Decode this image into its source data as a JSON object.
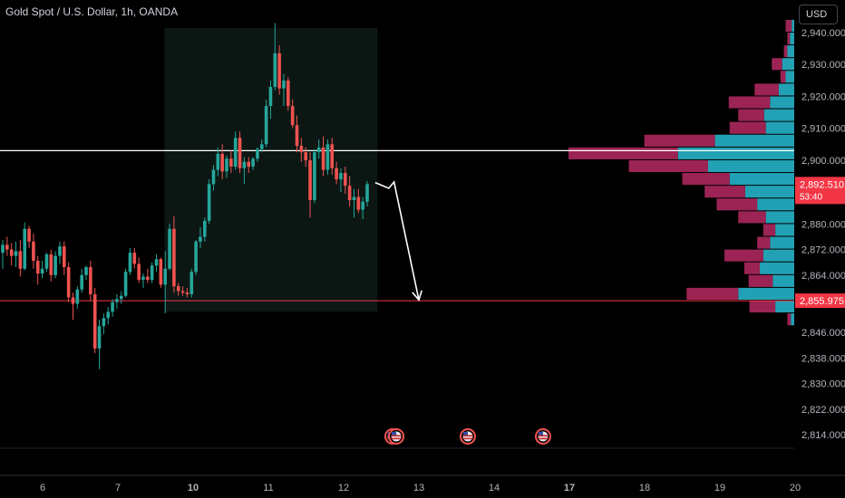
{
  "header": {
    "title": "Gold Spot / U.S. Dollar, 1h, OANDA",
    "currency_button": "USD"
  },
  "colors": {
    "up": "#26a69a",
    "down": "#ef5350",
    "vp_up": "#22a1b4",
    "vp_down": "#9c2454",
    "highlight": "#0c1714",
    "level_line": "#ffffff",
    "target_line": "#f23645",
    "price_tag": "#f23645"
  },
  "chart_data": {
    "type": "candlestick",
    "symbol": "Gold Spot / U.S. Dollar",
    "interval": "1h",
    "source": "OANDA",
    "ylim": [
      2806,
      2943
    ],
    "y_ticks": [
      2940,
      2930,
      2920,
      2910,
      2900,
      2892.51,
      2880,
      2872,
      2864,
      2855.975,
      2846,
      2838,
      2830,
      2822,
      2814
    ],
    "y_tick_labels": [
      "2,940.000",
      "2,930.000",
      "2,920.000",
      "2,910.000",
      "2,900.000",
      "2,892.510",
      "2,880.000",
      "2,872.000",
      "2,864.000",
      "2,855.975",
      "2,846.000",
      "2,838.000",
      "2,830.000",
      "2,822.000",
      "2,814.000"
    ],
    "x_range_days": [
      5.45,
      20.05
    ],
    "x_ticks": [
      {
        "label": "6",
        "day": 6
      },
      {
        "label": "7",
        "day": 7
      },
      {
        "label": "10",
        "day": 8
      },
      {
        "label": "11",
        "day": 9
      },
      {
        "label": "12",
        "day": 10
      },
      {
        "label": "13",
        "day": 11
      },
      {
        "label": "14",
        "day": 12
      },
      {
        "label": "17",
        "day": 13
      },
      {
        "label": "18",
        "day": 14
      },
      {
        "label": "19",
        "day": 15
      },
      {
        "label": "20",
        "day": 16
      }
    ],
    "current_price": {
      "value": 2892.51,
      "label": "2,892.510",
      "countdown": "53:40"
    },
    "target_price": {
      "value": 2855.975,
      "label": "2,855.975"
    },
    "resistance_level": 2903,
    "highlight_box": {
      "day_start": 7.62,
      "day_end": 10.45,
      "price_low": 2852.5,
      "price_high": 2941.5
    },
    "projection_path": [
      {
        "day": 10.42,
        "price": 2893.0
      },
      {
        "day": 10.6,
        "price": 2891.2
      },
      {
        "day": 10.67,
        "price": 2893.2
      },
      {
        "day": 11.0,
        "price": 2856.2
      }
    ],
    "event_days": [
      10.65,
      10.7,
      11.65,
      12.65
    ],
    "candles": [
      [
        2871.0,
        2875.0,
        2866.0,
        2873.5
      ],
      [
        2873.5,
        2876.0,
        2870.0,
        2872.0
      ],
      [
        2872.0,
        2874.0,
        2867.0,
        2870.0
      ],
      [
        2870.0,
        2874.5,
        2866.5,
        2871.5
      ],
      [
        2871.5,
        2875.0,
        2863.5,
        2866.0
      ],
      [
        2866.0,
        2880.5,
        2865.5,
        2878.5
      ],
      [
        2878.5,
        2879.5,
        2872.5,
        2874.5
      ],
      [
        2874.5,
        2877.0,
        2866.0,
        2868.5
      ],
      [
        2868.5,
        2870.0,
        2861.0,
        2864.5
      ],
      [
        2864.5,
        2868.5,
        2863.0,
        2866.0
      ],
      [
        2866.0,
        2871.0,
        2865.0,
        2870.5
      ],
      [
        2870.5,
        2872.0,
        2862.0,
        2864.0
      ],
      [
        2864.0,
        2871.5,
        2863.0,
        2870.0
      ],
      [
        2870.0,
        2874.5,
        2867.5,
        2873.0
      ],
      [
        2873.0,
        2874.5,
        2864.0,
        2866.5
      ],
      [
        2866.5,
        2868.0,
        2855.5,
        2857.0
      ],
      [
        2857.0,
        2858.5,
        2850.0,
        2855.0
      ],
      [
        2855.0,
        2860.5,
        2853.5,
        2859.5
      ],
      [
        2859.5,
        2866.0,
        2858.5,
        2864.0
      ],
      [
        2864.0,
        2867.0,
        2862.5,
        2866.5
      ],
      [
        2866.5,
        2868.5,
        2856.0,
        2858.0
      ],
      [
        2858.0,
        2860.0,
        2839.5,
        2841.0
      ],
      [
        2841.0,
        2850.0,
        2834.5,
        2848.0
      ],
      [
        2848.0,
        2852.0,
        2845.5,
        2850.5
      ],
      [
        2850.5,
        2854.0,
        2848.5,
        2852.5
      ],
      [
        2852.5,
        2856.5,
        2851.0,
        2855.5
      ],
      [
        2855.5,
        2858.0,
        2853.5,
        2856.5
      ],
      [
        2856.5,
        2859.0,
        2855.0,
        2857.5
      ],
      [
        2857.5,
        2866.0,
        2857.0,
        2865.0
      ],
      [
        2865.0,
        2872.5,
        2864.0,
        2871.0
      ],
      [
        2871.0,
        2872.5,
        2866.0,
        2867.5
      ],
      [
        2867.5,
        2869.5,
        2861.5,
        2862.5
      ],
      [
        2862.5,
        2864.5,
        2860.0,
        2863.5
      ],
      [
        2863.5,
        2866.0,
        2861.5,
        2862.5
      ],
      [
        2862.5,
        2868.0,
        2861.5,
        2867.0
      ],
      [
        2867.0,
        2870.5,
        2865.0,
        2869.0
      ],
      [
        2869.0,
        2869.5,
        2860.0,
        2861.0
      ],
      [
        2861.0,
        2871.5,
        2852.0,
        2866.0
      ],
      [
        2866.0,
        2880.0,
        2865.5,
        2878.5
      ],
      [
        2878.5,
        2882.5,
        2858.5,
        2860.5
      ],
      [
        2860.5,
        2861.5,
        2857.5,
        2859.0
      ],
      [
        2859.0,
        2860.5,
        2857.5,
        2858.5
      ],
      [
        2858.5,
        2860.0,
        2857.0,
        2858.0
      ],
      [
        2858.0,
        2866.0,
        2857.0,
        2865.0
      ],
      [
        2865.0,
        2875.0,
        2864.0,
        2874.5
      ],
      [
        2874.5,
        2879.0,
        2872.5,
        2876.0
      ],
      [
        2876.0,
        2882.0,
        2874.5,
        2881.0
      ],
      [
        2881.0,
        2894.0,
        2880.0,
        2892.5
      ],
      [
        2892.5,
        2898.5,
        2890.5,
        2897.0
      ],
      [
        2897.0,
        2904.0,
        2895.0,
        2902.0
      ],
      [
        2902.0,
        2905.0,
        2894.0,
        2896.5
      ],
      [
        2896.5,
        2901.5,
        2894.5,
        2900.5
      ],
      [
        2900.5,
        2903.0,
        2896.0,
        2898.0
      ],
      [
        2898.0,
        2909.0,
        2897.0,
        2907.0
      ],
      [
        2907.0,
        2909.0,
        2896.0,
        2897.5
      ],
      [
        2897.5,
        2901.0,
        2892.5,
        2899.5
      ],
      [
        2899.5,
        2901.0,
        2896.0,
        2898.0
      ],
      [
        2898.0,
        2901.0,
        2897.0,
        2900.5
      ],
      [
        2900.5,
        2904.0,
        2899.5,
        2903.5
      ],
      [
        2903.5,
        2906.5,
        2902.5,
        2905.0
      ],
      [
        2905.0,
        2919.0,
        2904.0,
        2917.0
      ],
      [
        2917.0,
        2925.0,
        2913.0,
        2923.0
      ],
      [
        2923.0,
        2943.0,
        2922.0,
        2933.5
      ],
      [
        2933.5,
        2936.0,
        2920.5,
        2922.5
      ],
      [
        2922.5,
        2927.0,
        2917.0,
        2925.0
      ],
      [
        2925.0,
        2926.0,
        2915.5,
        2917.0
      ],
      [
        2917.0,
        2919.0,
        2910.0,
        2911.0
      ],
      [
        2911.0,
        2914.0,
        2902.5,
        2904.5
      ],
      [
        2904.5,
        2907.0,
        2899.5,
        2902.5
      ],
      [
        2902.5,
        2904.0,
        2898.0,
        2900.0
      ],
      [
        2900.0,
        2902.5,
        2882.0,
        2887.5
      ],
      [
        2887.5,
        2903.5,
        2886.5,
        2902.5
      ],
      [
        2902.5,
        2906.5,
        2900.5,
        2904.0
      ],
      [
        2904.0,
        2907.5,
        2895.0,
        2897.0
      ],
      [
        2897.0,
        2906.5,
        2895.5,
        2905.0
      ],
      [
        2905.0,
        2907.0,
        2895.5,
        2897.5
      ],
      [
        2897.5,
        2899.5,
        2892.5,
        2894.0
      ],
      [
        2894.0,
        2897.5,
        2890.0,
        2896.0
      ],
      [
        2896.0,
        2898.0,
        2889.5,
        2892.0
      ],
      [
        2892.0,
        2895.0,
        2885.5,
        2887.5
      ],
      [
        2887.5,
        2891.0,
        2882.0,
        2888.5
      ],
      [
        2888.5,
        2891.0,
        2883.5,
        2884.5
      ],
      [
        2884.5,
        2888.5,
        2881.5,
        2887.0
      ],
      [
        2887.0,
        2893.5,
        2885.5,
        2892.5
      ]
    ],
    "volume_profile": [
      {
        "price": 2942,
        "up": 3,
        "down": 7
      },
      {
        "price": 2938,
        "up": 5,
        "down": 3
      },
      {
        "price": 2934,
        "up": 8,
        "down": 4
      },
      {
        "price": 2930,
        "up": 14,
        "down": 12
      },
      {
        "price": 2926,
        "up": 10,
        "down": 6
      },
      {
        "price": 2922,
        "up": 18,
        "down": 28
      },
      {
        "price": 2918,
        "up": 28,
        "down": 48
      },
      {
        "price": 2914,
        "up": 35,
        "down": 30
      },
      {
        "price": 2910,
        "up": 33,
        "down": 42
      },
      {
        "price": 2906,
        "up": 92,
        "down": 82
      },
      {
        "price": 2902,
        "up": 135,
        "down": 127
      },
      {
        "price": 2898,
        "up": 100,
        "down": 92
      },
      {
        "price": 2894,
        "up": 75,
        "down": 55
      },
      {
        "price": 2890,
        "up": 57,
        "down": 47
      },
      {
        "price": 2886,
        "up": 43,
        "down": 47
      },
      {
        "price": 2882,
        "up": 33,
        "down": 32
      },
      {
        "price": 2878,
        "up": 22,
        "down": 14
      },
      {
        "price": 2874,
        "up": 28,
        "down": 15
      },
      {
        "price": 2870,
        "up": 36,
        "down": 45
      },
      {
        "price": 2866,
        "up": 40,
        "down": 18
      },
      {
        "price": 2862,
        "up": 25,
        "down": 28
      },
      {
        "price": 2858,
        "up": 65,
        "down": 60
      },
      {
        "price": 2854,
        "up": 22,
        "down": 30
      },
      {
        "price": 2850,
        "up": 4,
        "down": 4
      }
    ]
  }
}
